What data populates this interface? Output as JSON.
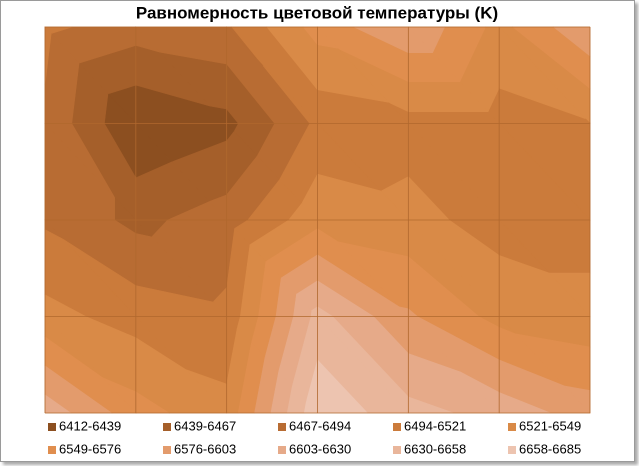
{
  "chart_data": {
    "type": "contour",
    "title": "Равномерность цветовой температуры (K)",
    "z": [
      [
        6500,
        6480,
        6490,
        6560,
        6600,
        6540,
        6600
      ],
      [
        6490,
        6412,
        6430,
        6500,
        6510,
        6510,
        6520
      ],
      [
        6490,
        6460,
        6480,
        6540,
        6530,
        6510,
        6510
      ],
      [
        6530,
        6510,
        6500,
        6640,
        6580,
        6540,
        6530
      ],
      [
        6620,
        6560,
        6530,
        6680,
        6640,
        6620,
        6590
      ]
    ],
    "levels": [
      6412,
      6439,
      6467,
      6494,
      6521,
      6549,
      6576,
      6603,
      6630,
      6658,
      6685
    ],
    "series": [
      {
        "name": "6412-6439",
        "color": "#8c4f20"
      },
      {
        "name": "6439-6467",
        "color": "#a55f2a"
      },
      {
        "name": "6467-6494",
        "color": "#b86c33"
      },
      {
        "name": "6494-6521",
        "color": "#cb7b3b"
      },
      {
        "name": "6521-6549",
        "color": "#d98a47"
      },
      {
        "name": "6549-6576",
        "color": "#e08e4e"
      },
      {
        "name": "6576-6603",
        "color": "#e39b6c"
      },
      {
        "name": "6603-6630",
        "color": "#e6aa89"
      },
      {
        "name": "6630-6658",
        "color": "#e9b69b"
      },
      {
        "name": "6658-6685",
        "color": "#edc4b0"
      }
    ]
  }
}
